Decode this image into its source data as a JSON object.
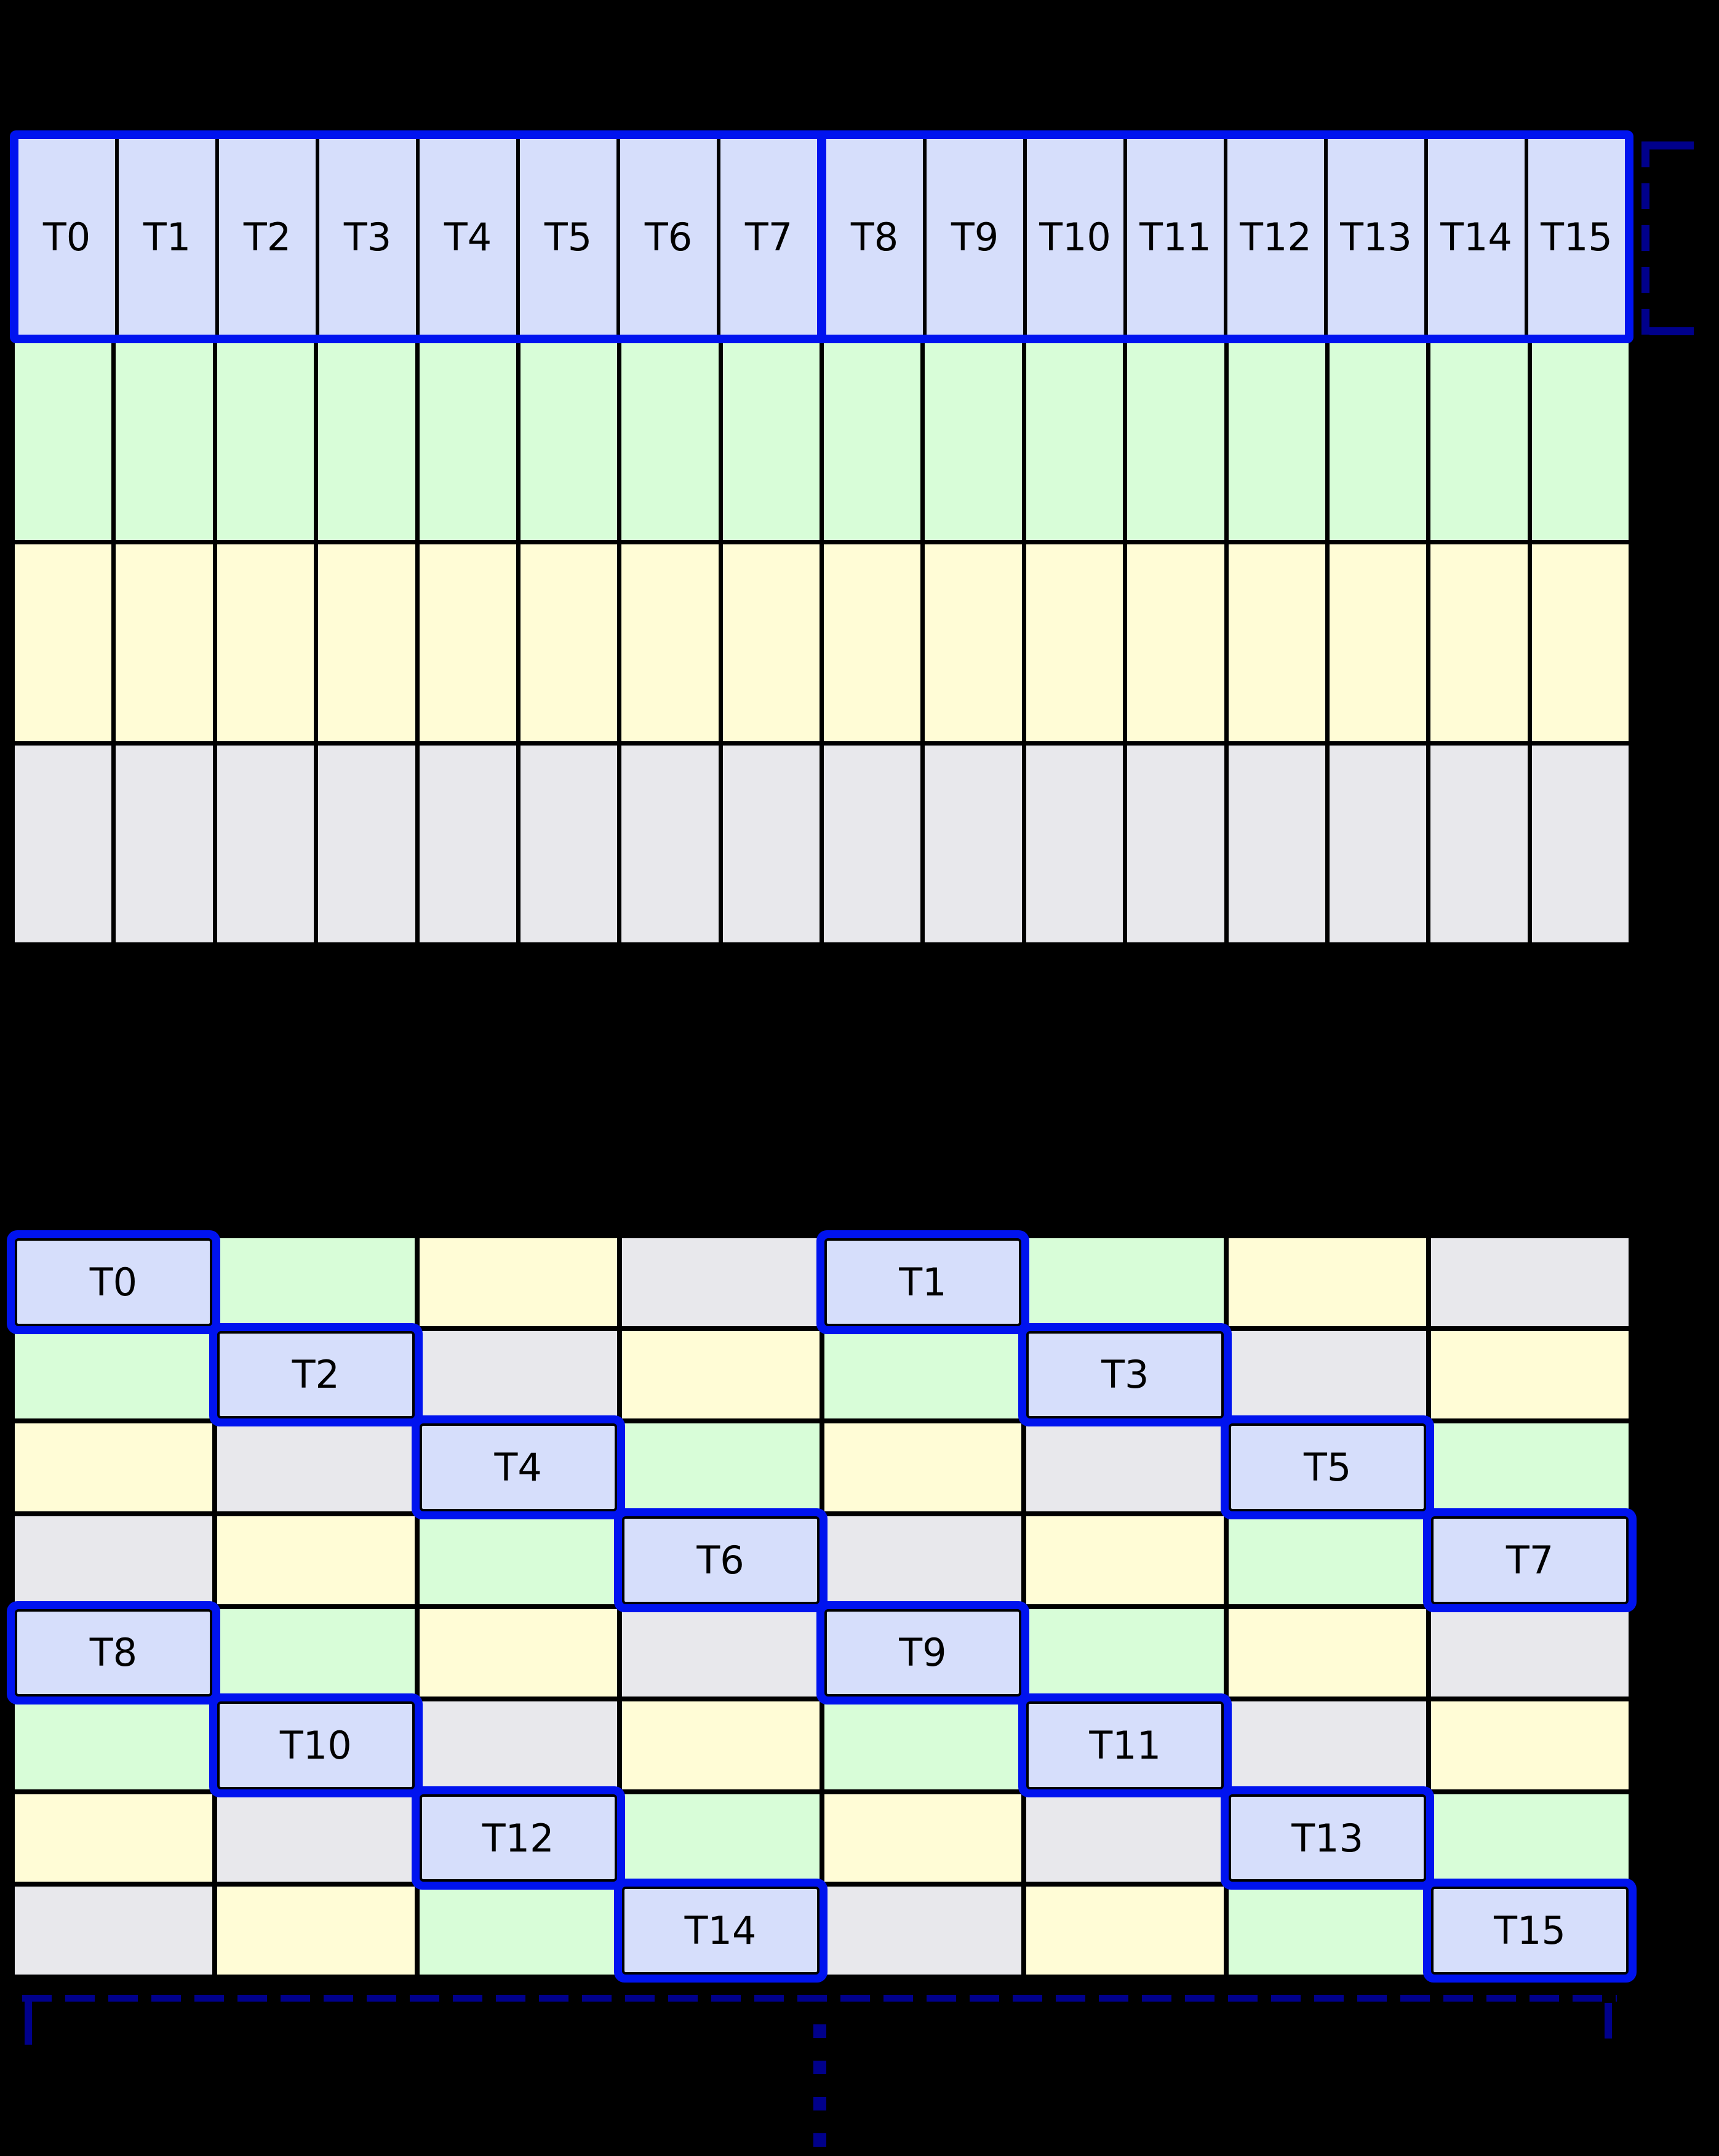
{
  "figure": {
    "background": "#000000",
    "accent_blue": "#0013ef",
    "navy_dashed": "#00008b",
    "palette": {
      "thread": "#d6defb",
      "green": "#d8fdd8",
      "yellow": "#fffcd6",
      "gray": "#e8e8ec"
    }
  },
  "top_grid": {
    "columns": 16,
    "thread_labels": [
      "T0",
      "T1",
      "T2",
      "T3",
      "T4",
      "T5",
      "T6",
      "T7",
      "T8",
      "T9",
      "T10",
      "T11",
      "T12",
      "T13",
      "T14",
      "T15"
    ],
    "divider_after_index": 7,
    "data_row_colors": [
      "green",
      "yellow",
      "gray"
    ]
  },
  "right_bracket": {
    "style": "dashed",
    "color": "#00008b"
  },
  "bottom_grid": {
    "rows": 8,
    "cols": 8,
    "color_matrix": [
      [
        "thread",
        "green",
        "yellow",
        "gray",
        "thread",
        "green",
        "yellow",
        "gray"
      ],
      [
        "green",
        "thread",
        "gray",
        "yellow",
        "green",
        "thread",
        "gray",
        "yellow"
      ],
      [
        "yellow",
        "gray",
        "thread",
        "green",
        "yellow",
        "gray",
        "thread",
        "green"
      ],
      [
        "gray",
        "yellow",
        "green",
        "thread",
        "gray",
        "yellow",
        "green",
        "thread"
      ],
      [
        "thread",
        "green",
        "yellow",
        "gray",
        "thread",
        "green",
        "yellow",
        "gray"
      ],
      [
        "green",
        "thread",
        "gray",
        "yellow",
        "green",
        "thread",
        "gray",
        "yellow"
      ],
      [
        "yellow",
        "gray",
        "thread",
        "green",
        "yellow",
        "gray",
        "thread",
        "green"
      ],
      [
        "gray",
        "yellow",
        "green",
        "thread",
        "gray",
        "yellow",
        "green",
        "thread"
      ]
    ],
    "thread_cells": {
      "0,0": "T0",
      "0,4": "T1",
      "1,1": "T2",
      "1,5": "T3",
      "2,2": "T4",
      "2,6": "T5",
      "3,3": "T6",
      "3,7": "T7",
      "4,0": "T8",
      "4,4": "T9",
      "5,1": "T10",
      "5,5": "T11",
      "6,2": "T12",
      "6,6": "T13",
      "7,3": "T14",
      "7,7": "T15"
    }
  },
  "bottom_bracket": {
    "style": "dashed",
    "color": "#00008b"
  },
  "continuation_ellipsis": {
    "style": "dotted-vertical",
    "color": "#00008b"
  }
}
